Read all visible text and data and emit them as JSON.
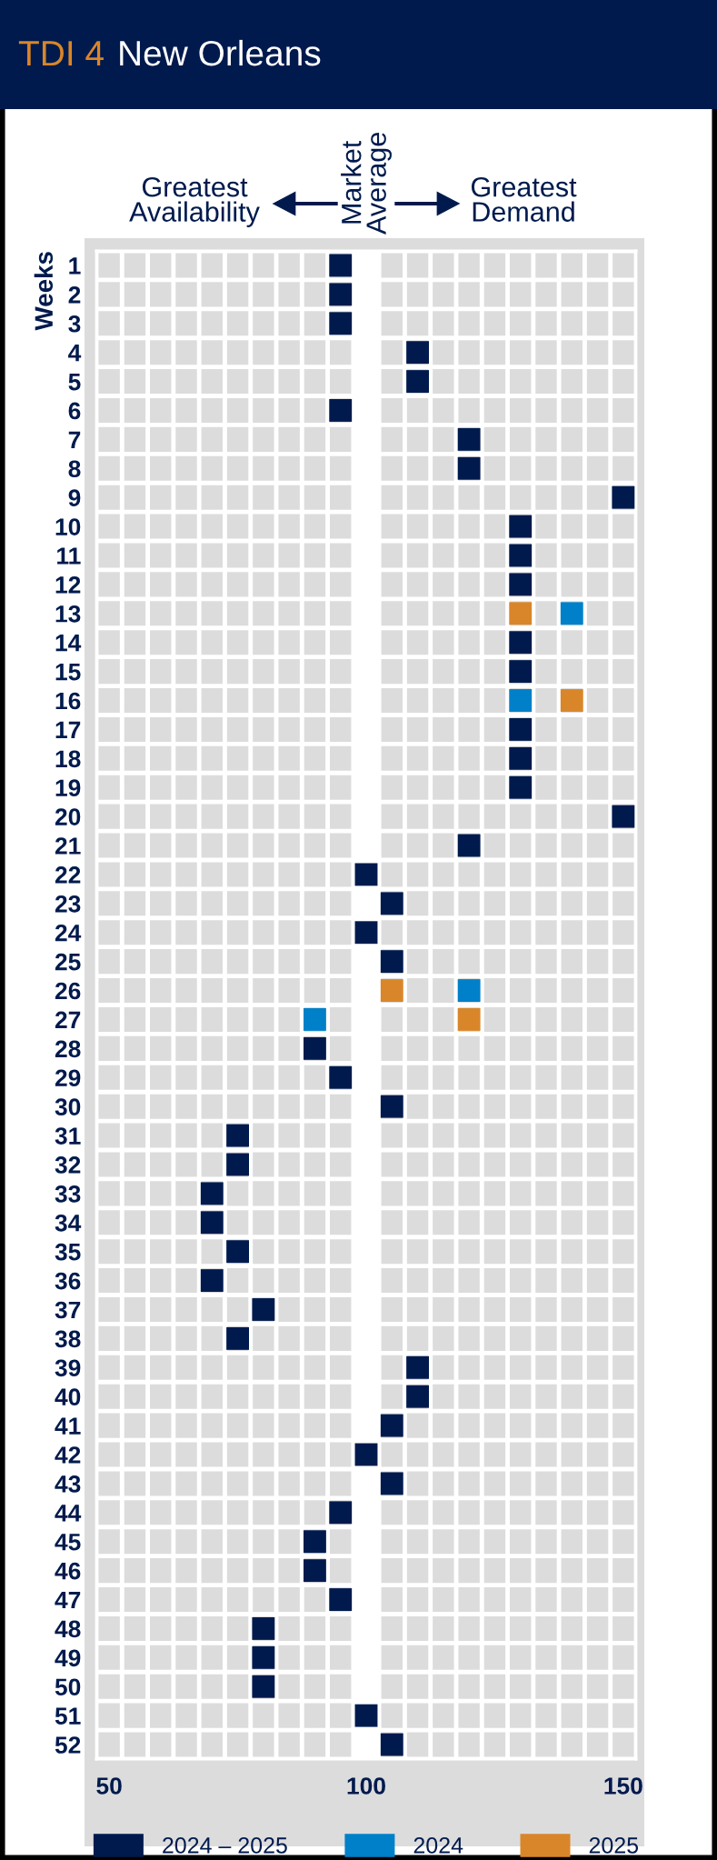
{
  "chart_data": {
    "type": "scatter",
    "orientation": "horizontal",
    "title": "TDI 4",
    "subtitle": "New Orleans",
    "ylabel": "Weeks",
    "categories": [
      "1",
      "2",
      "3",
      "4",
      "5",
      "6",
      "7",
      "8",
      "9",
      "10",
      "11",
      "12",
      "13",
      "14",
      "15",
      "16",
      "17",
      "18",
      "19",
      "20",
      "21",
      "22",
      "23",
      "24",
      "25",
      "26",
      "27",
      "28",
      "29",
      "30",
      "31",
      "32",
      "33",
      "34",
      "35",
      "36",
      "37",
      "38",
      "39",
      "40",
      "41",
      "42",
      "43",
      "44",
      "45",
      "46",
      "47",
      "48",
      "49",
      "50",
      "51",
      "52"
    ],
    "series": [
      {
        "name": "2024 – 2025",
        "color": "#001a4d",
        "values": [
          95,
          95,
          95,
          110,
          110,
          95,
          120,
          120,
          150,
          130,
          130,
          130,
          null,
          130,
          130,
          null,
          130,
          130,
          130,
          150,
          120,
          100,
          105,
          100,
          105,
          null,
          null,
          90,
          95,
          105,
          75,
          75,
          70,
          70,
          75,
          70,
          80,
          75,
          110,
          110,
          105,
          100,
          105,
          95,
          90,
          90,
          95,
          80,
          80,
          80,
          100,
          105
        ]
      },
      {
        "name": "2024",
        "color": "#0080c8",
        "values": [
          null,
          null,
          null,
          null,
          null,
          null,
          null,
          null,
          null,
          null,
          null,
          null,
          140,
          null,
          null,
          130,
          null,
          null,
          null,
          null,
          null,
          null,
          null,
          null,
          null,
          120,
          90,
          null,
          null,
          null,
          null,
          null,
          null,
          null,
          null,
          null,
          null,
          null,
          null,
          null,
          null,
          null,
          null,
          null,
          null,
          null,
          null,
          null,
          null,
          null,
          null,
          null
        ]
      },
      {
        "name": "2025",
        "color": "#d9862a",
        "values": [
          null,
          null,
          null,
          null,
          null,
          null,
          null,
          null,
          null,
          null,
          null,
          null,
          130,
          null,
          null,
          140,
          null,
          null,
          null,
          null,
          null,
          null,
          null,
          null,
          null,
          105,
          120,
          null,
          null,
          null,
          null,
          null,
          null,
          null,
          null,
          null,
          null,
          null,
          null,
          null,
          null,
          null,
          null,
          null,
          null,
          null,
          null,
          null,
          null,
          null,
          null,
          null
        ]
      }
    ],
    "xlim": [
      47.5,
      152.5
    ],
    "xticks": [
      50,
      100,
      150
    ],
    "bands": [
      {
        "axis": "x",
        "from": 97.5,
        "to": 102.5,
        "label": "Market\nAverage",
        "color": "#ffffff"
      }
    ],
    "annotations": [
      "Greatest\nAvailability",
      "Greatest\nDemand"
    ],
    "marker": "square",
    "grid": true,
    "legend": "bottom"
  }
}
